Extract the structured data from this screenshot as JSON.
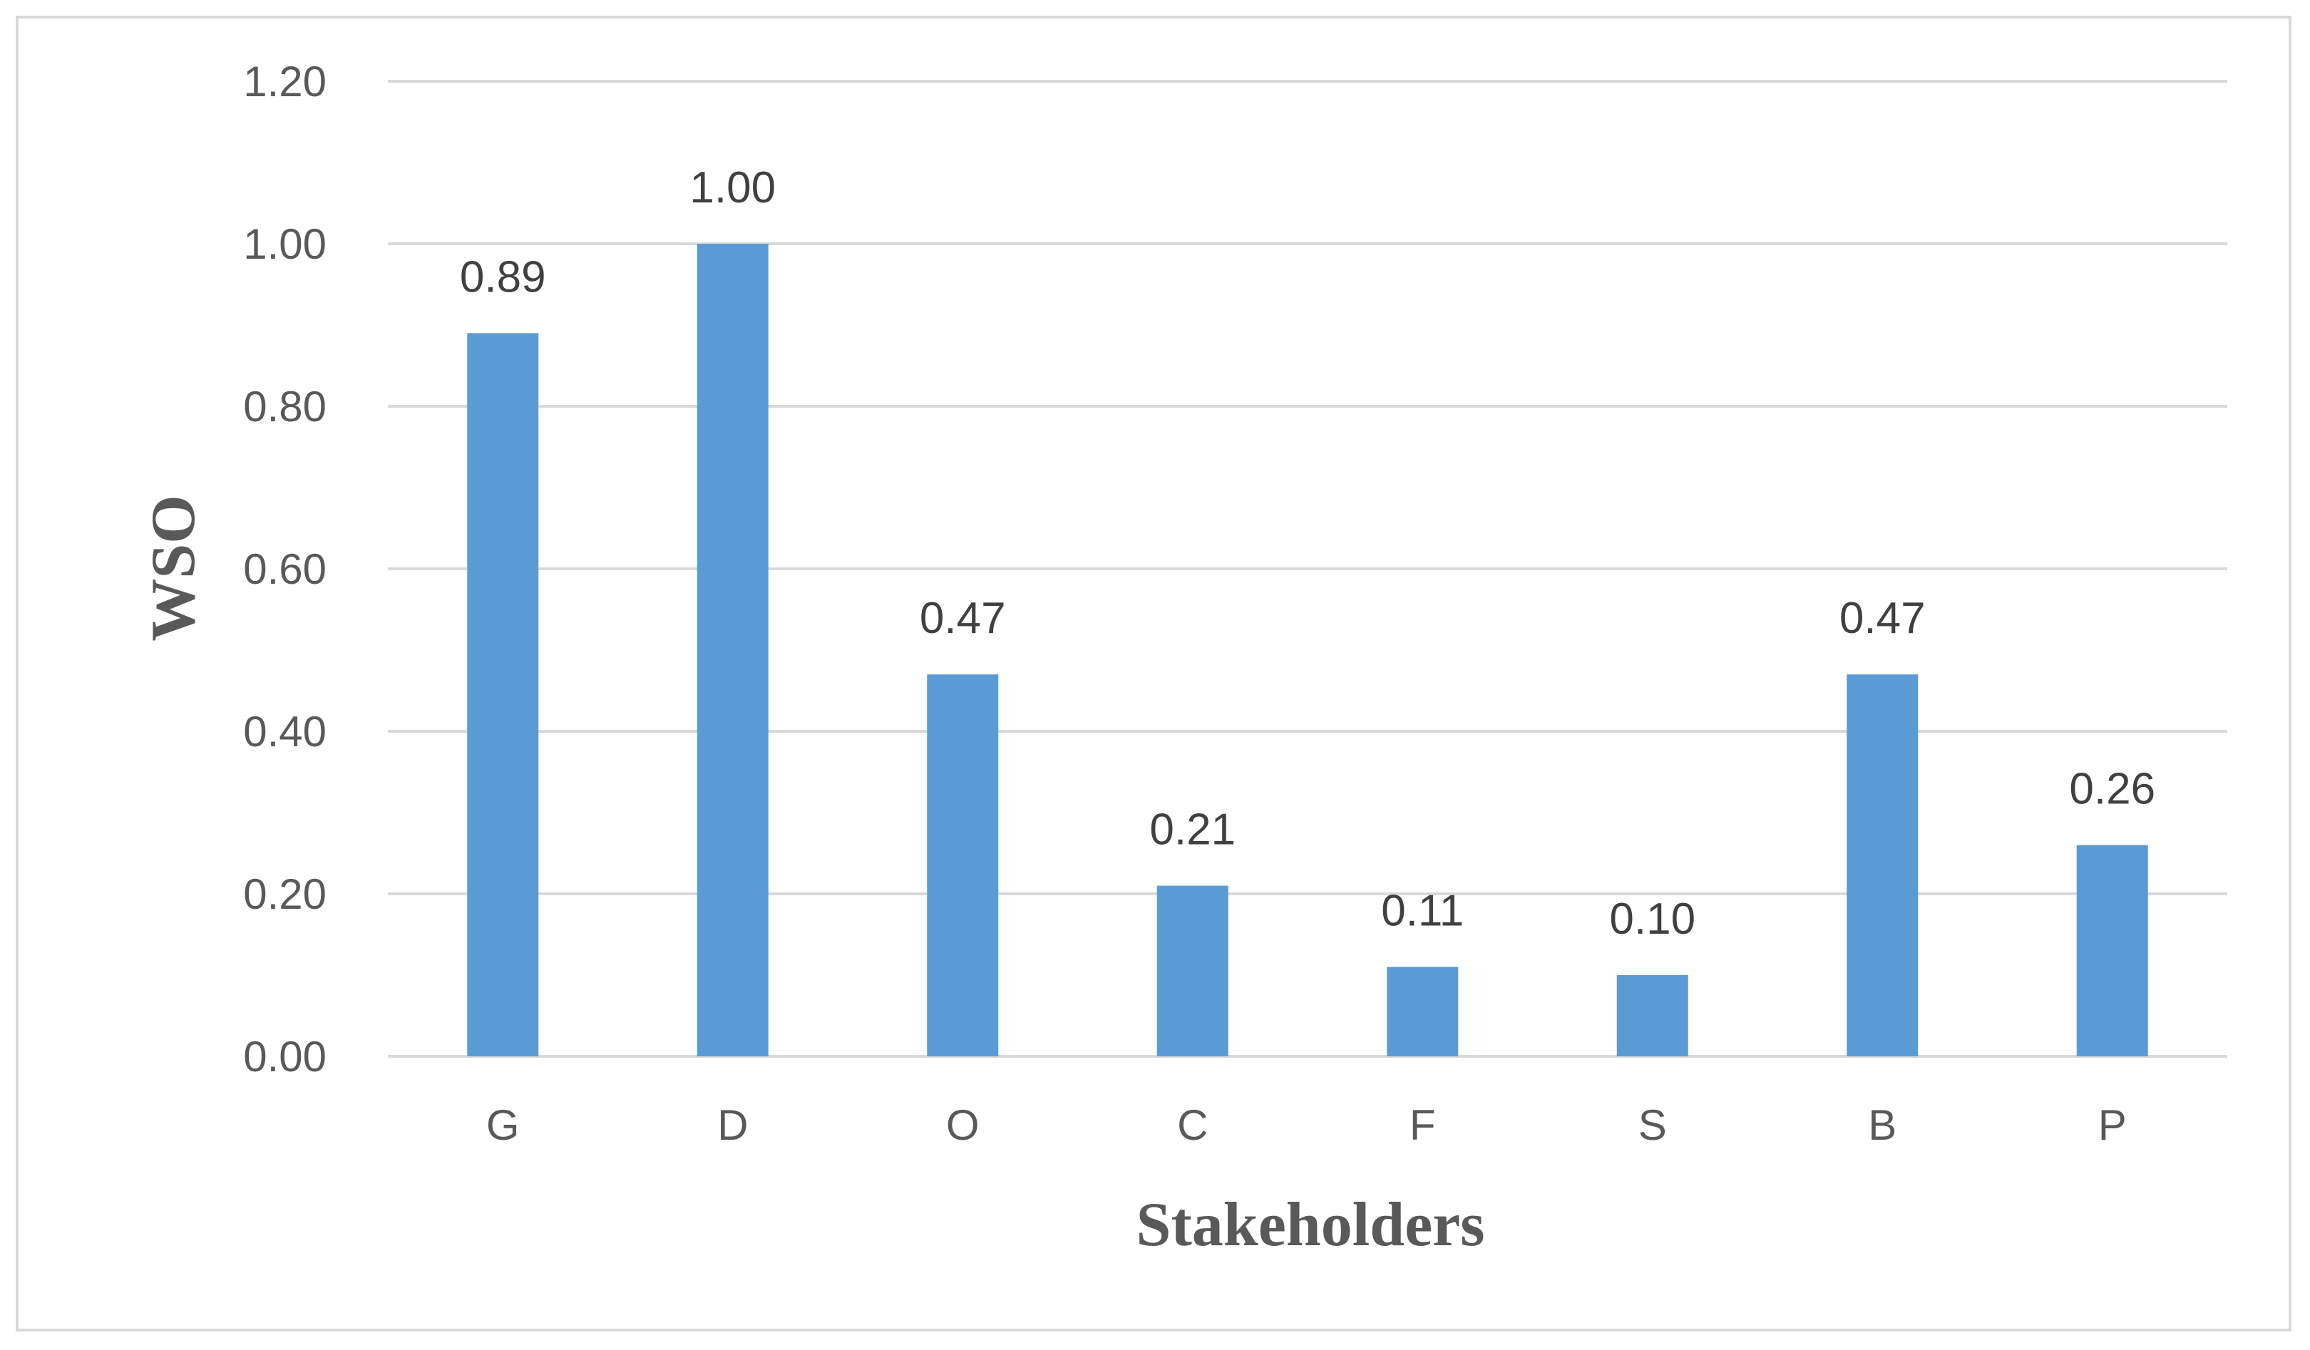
{
  "chart_data": {
    "type": "bar",
    "categories": [
      "G",
      "D",
      "O",
      "C",
      "F",
      "S",
      "B",
      "P"
    ],
    "values": [
      0.89,
      1.0,
      0.47,
      0.21,
      0.11,
      0.1,
      0.47,
      0.26
    ],
    "data_labels": [
      "0.89",
      "1.00",
      "0.47",
      "0.21",
      "0.11",
      "0.10",
      "0.47",
      "0.26"
    ],
    "title": "",
    "xlabel": "Stakeholders",
    "ylabel": "WSO",
    "ylim": [
      0,
      1.2
    ],
    "yticks": [
      "0.00",
      "0.20",
      "0.40",
      "0.60",
      "0.80",
      "1.00",
      "1.20"
    ],
    "grid": true,
    "legend": "none",
    "bar_color": "#5b9bd5",
    "grid_color": "#d9d9d9"
  }
}
